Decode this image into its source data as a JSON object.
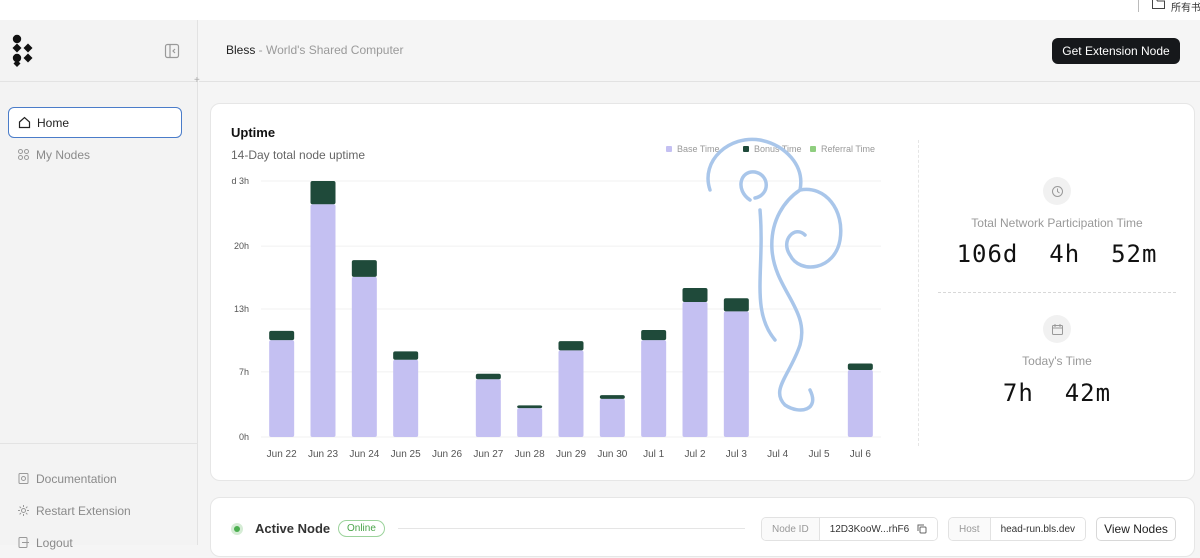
{
  "topbar": {
    "text": "所有书"
  },
  "sidebar": {
    "nav": [
      {
        "label": "Home",
        "icon": "home-icon",
        "active": true
      },
      {
        "label": "My Nodes",
        "icon": "nodes-icon",
        "active": false
      }
    ],
    "bottom": [
      {
        "label": "Documentation",
        "icon": "document-icon"
      },
      {
        "label": "Restart Extension",
        "icon": "gear-icon"
      },
      {
        "label": "Logout",
        "icon": "logout-icon"
      }
    ]
  },
  "header": {
    "brand": "Bless",
    "tagline": " - World's Shared Computer",
    "cta": "Get Extension Node"
  },
  "uptime": {
    "title": "Uptime",
    "subtitle": "14-Day total node uptime",
    "legend": [
      {
        "label": "Base Time",
        "color": "#c4c0f2"
      },
      {
        "label": "Bonus Time",
        "color": "#1f4a3a"
      },
      {
        "label": "Referral Time",
        "color": "#8fce7f"
      }
    ],
    "stats": {
      "total_label": "Total Network Participation Time",
      "total_value": "106d  4h  52m",
      "today_label": "Today's Time",
      "today_value": "7h  42m"
    }
  },
  "chart_data": {
    "type": "bar",
    "stacked": true,
    "categories": [
      "Jun 22",
      "Jun 23",
      "Jun 24",
      "Jun 25",
      "Jun 26",
      "Jun 27",
      "Jun 28",
      "Jun 29",
      "Jun 30",
      "Jul 1",
      "Jul 2",
      "Jul 3",
      "Jul 4",
      "Jul 5",
      "Jul 6"
    ],
    "series": [
      {
        "name": "Base Time",
        "color": "#c4c0f2",
        "values": [
          10.4,
          25.0,
          17.2,
          8.3,
          0,
          6.2,
          3.1,
          9.3,
          4.1,
          10.4,
          14.5,
          13.5,
          0,
          0,
          7.2
        ]
      },
      {
        "name": "Bonus Time",
        "color": "#1f4a3a",
        "values": [
          1.0,
          2.5,
          1.8,
          0.9,
          0,
          0.6,
          0.3,
          1.0,
          0.4,
          1.1,
          1.5,
          1.4,
          0,
          0,
          0.7
        ]
      }
    ],
    "yticks": [
      "0h",
      "7h",
      "13h",
      "20h",
      "d 3h"
    ],
    "ylim": [
      0,
      27.5
    ],
    "grid": true,
    "legend_position": "top-right"
  },
  "active_node": {
    "title": "Active Node",
    "status": "Online",
    "node_id_label": "Node ID",
    "node_id": "12D3KooW...rhF6",
    "host_label": "Host",
    "host": "head-run.bls.dev",
    "view_label": "View Nodes"
  }
}
